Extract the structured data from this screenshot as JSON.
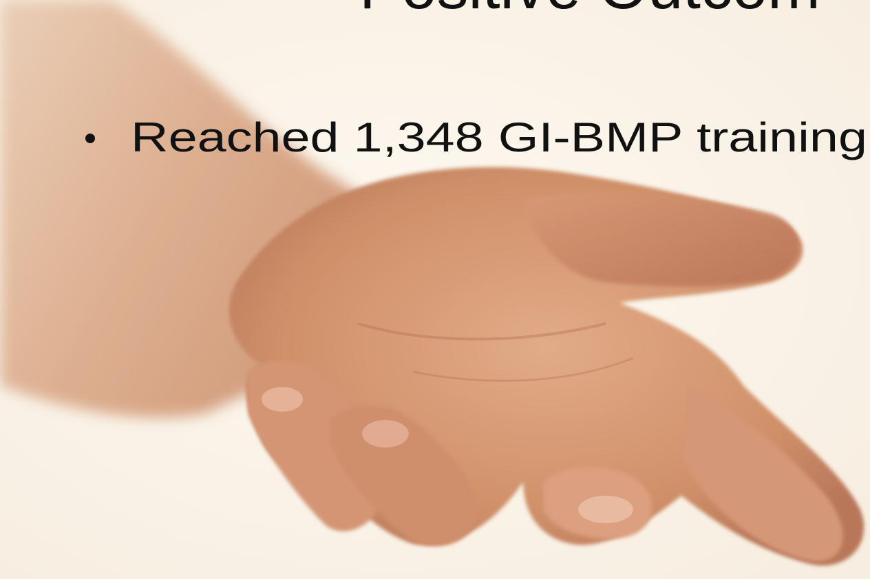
{
  "slide": {
    "title": "Positive Outcom",
    "bullets": [
      "Reached 1,348 GI-BMP training"
    ]
  }
}
